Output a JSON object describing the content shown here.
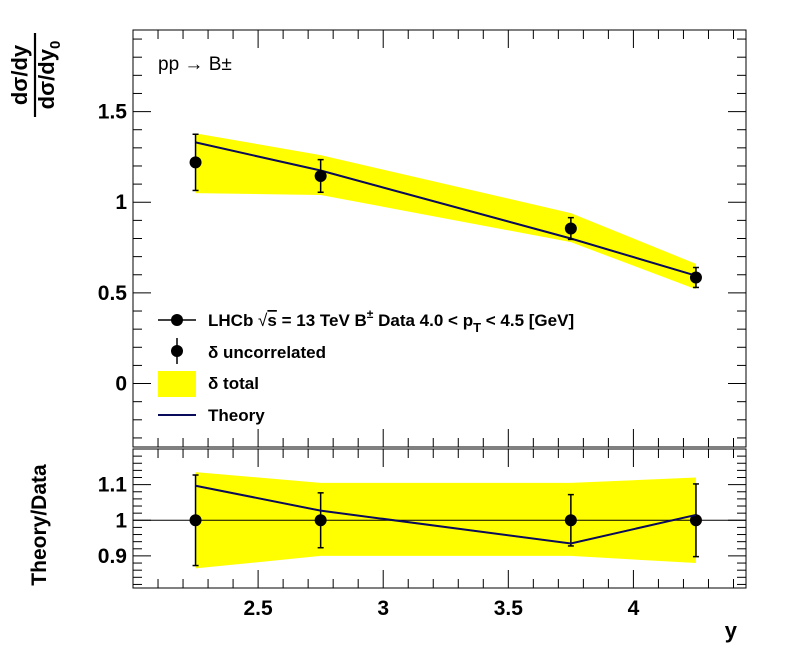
{
  "chart_data": [
    {
      "type": "line",
      "panel": "main",
      "annotation": "pp → B±",
      "xlabel": "",
      "ylabel": "dσ/dy / dσ/dy_0",
      "xlim": [
        2.0,
        4.45
      ],
      "ylim": [
        -0.35,
        1.95
      ],
      "y_ticks": [
        "0",
        "0.5",
        "1",
        "1.5"
      ],
      "x": [
        2.25,
        2.75,
        3.75,
        4.25
      ],
      "data": {
        "name": "LHCb √s = 13 TeV B± Data 4.0 < pT < 4.5 [GeV]",
        "values": [
          1.22,
          1.145,
          0.855,
          0.585
        ],
        "err_uncorrelated": [
          0.155,
          0.09,
          0.06,
          0.055
        ]
      },
      "theory": {
        "name": "Theory",
        "values": [
          1.33,
          1.175,
          0.8,
          0.595
        ]
      },
      "total_band": {
        "name": "δ total",
        "lower": [
          1.05,
          1.04,
          0.78,
          0.52
        ],
        "upper": [
          1.38,
          1.26,
          0.94,
          0.66
        ]
      },
      "legend": [
        {
          "label_pre": "LHCb ",
          "label_sqrt": "√",
          "label_s": "s",
          "label_mid": " = 13 TeV B",
          "label_sup": "±",
          "label_post": " Data 4.0 < p",
          "label_sub": "T",
          "label_end": " < 4.5 [GeV]"
        },
        {
          "label": "δ uncorrelated"
        },
        {
          "label": "δ total"
        },
        {
          "label": "Theory"
        }
      ],
      "legend_position": "bottom-left",
      "colors": {
        "band": "#ffff00",
        "theory": "#0a0a5a",
        "data": "#000000"
      },
      "grid": false
    },
    {
      "type": "line",
      "panel": "ratio",
      "xlabel": "y",
      "ylabel": "Theory/Data",
      "xlim": [
        2.0,
        4.45
      ],
      "ylim": [
        0.81,
        1.2
      ],
      "x_ticks": [
        "2.5",
        "3",
        "3.5",
        "4"
      ],
      "y_ticks": [
        "0.9",
        "1",
        "1.1"
      ],
      "x": [
        2.25,
        2.75,
        3.75,
        4.25
      ],
      "ratio": [
        1.097,
        1.027,
        0.935,
        1.015
      ],
      "data_err": [
        0.127,
        0.077,
        0.072,
        0.102
      ],
      "band_lower": [
        0.865,
        0.9,
        0.9,
        0.88
      ],
      "band_upper": [
        1.135,
        1.105,
        1.105,
        1.12
      ],
      "reference_line": 1,
      "grid": false
    }
  ]
}
